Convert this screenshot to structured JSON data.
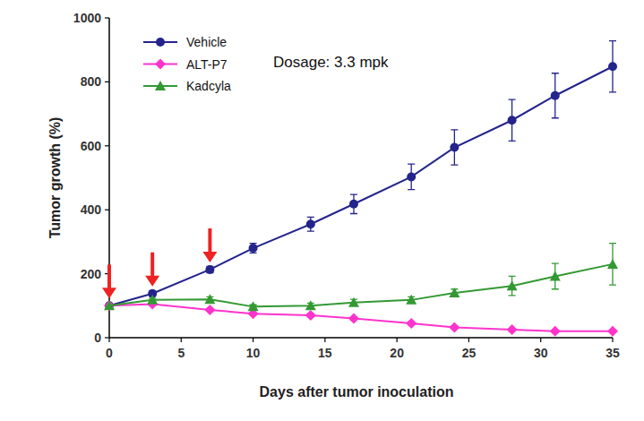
{
  "chart_data": {
    "type": "line",
    "annotation": "Dosage: 3.3 mpk",
    "x_label": "Days after tumor inoculation",
    "y_label": "Tumor growth (%)",
    "x": [
      0,
      3,
      7,
      10,
      14,
      17,
      21,
      24,
      28,
      31,
      35
    ],
    "xlim": [
      0,
      35
    ],
    "xticks": [
      0,
      5,
      10,
      15,
      20,
      25,
      30,
      35
    ],
    "ylim": [
      0,
      1000
    ],
    "yticks": [
      0,
      200,
      400,
      600,
      800,
      1000
    ],
    "grid": false,
    "legend": "upper left",
    "dosing_days": [
      0,
      3,
      7
    ],
    "series": [
      {
        "name": "Vehicle",
        "color": "#24248c",
        "marker": "circle",
        "values": [
          100,
          138,
          213,
          280,
          355,
          418,
          503,
          595,
          680,
          757,
          848
        ],
        "errors": [
          0,
          8,
          10,
          15,
          22,
          30,
          40,
          55,
          65,
          70,
          80
        ]
      },
      {
        "name": "ALT-P7",
        "color": "#ff33cc",
        "marker": "diamond",
        "values": [
          100,
          105,
          87,
          75,
          70,
          60,
          45,
          32,
          25,
          20,
          20
        ],
        "errors": [
          0,
          3,
          4,
          4,
          5,
          5,
          5,
          4,
          4,
          3,
          3
        ]
      },
      {
        "name": "Kadcyla",
        "color": "#339933",
        "marker": "triangle",
        "values": [
          100,
          118,
          120,
          97,
          100,
          110,
          118,
          140,
          162,
          192,
          230
        ],
        "errors": [
          0,
          5,
          8,
          6,
          8,
          10,
          10,
          12,
          30,
          40,
          65
        ]
      }
    ]
  }
}
